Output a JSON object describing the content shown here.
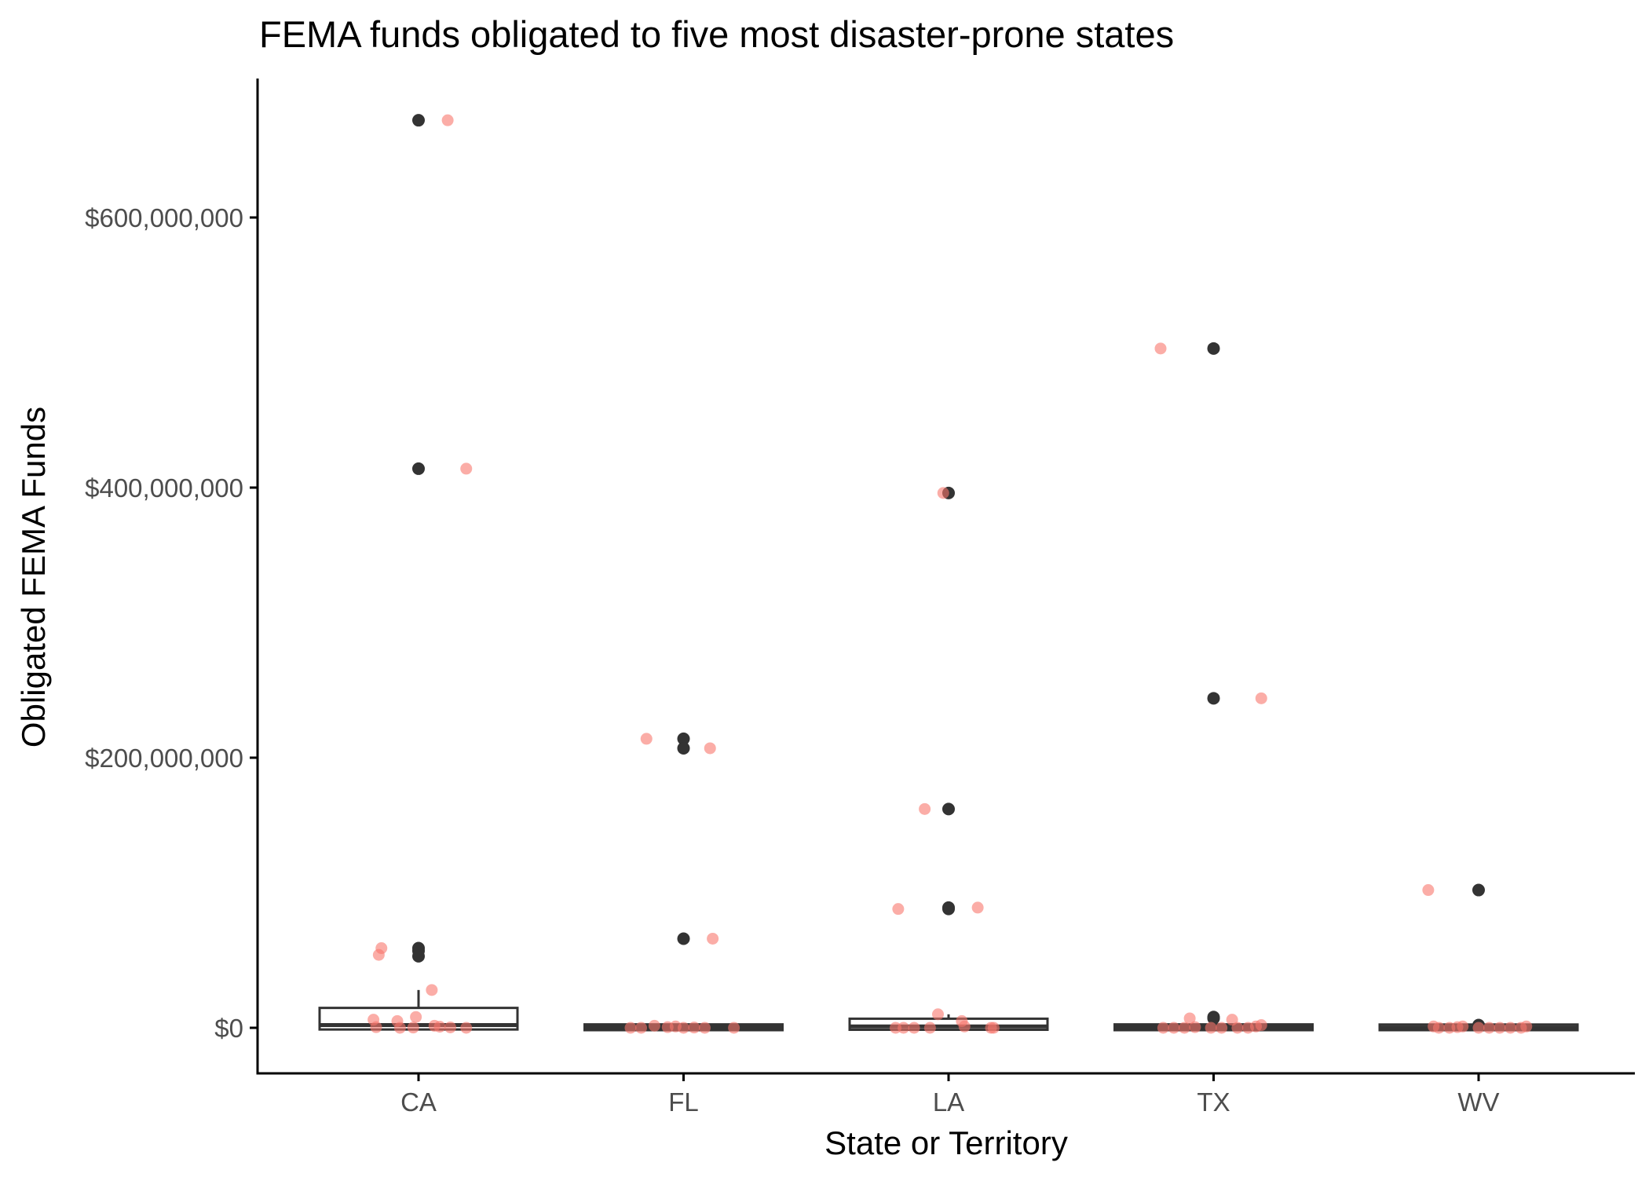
{
  "chart_data": {
    "type": "boxplot",
    "title": "FEMA funds obligated to five most disaster-prone states",
    "xlabel": "State or Territory",
    "ylabel": "Obligated FEMA Funds",
    "categories": [
      "CA",
      "FL",
      "LA",
      "TX",
      "WV"
    ],
    "y_ticks": [
      0,
      200000000,
      400000000,
      600000000
    ],
    "y_tick_labels": [
      "$0",
      "$200,000,000",
      "$400,000,000",
      "$600,000,000"
    ],
    "ylim": [
      -35000000,
      700000000
    ],
    "grid": false,
    "colors": {
      "box": "#333333",
      "box_fill": "#ffffff",
      "outlier": "#333333",
      "jitter": "#f8766d",
      "axis": "#000000"
    },
    "boxes": [
      {
        "category": "CA",
        "q1": 500000,
        "median": 2000000,
        "q3": 13000000,
        "whisker_low": 0,
        "whisker_high": 28000000,
        "outliers": [
          672000000,
          414000000,
          59000000,
          57000000,
          53000000
        ]
      },
      {
        "category": "FL",
        "q1": 0,
        "median": 300000,
        "q3": 800000,
        "whisker_low": 0,
        "whisker_high": 1500000,
        "outliers": [
          214000000,
          207000000,
          66000000
        ]
      },
      {
        "category": "LA",
        "q1": 300000,
        "median": 1000000,
        "q3": 5000000,
        "whisker_low": 0,
        "whisker_high": 10000000,
        "outliers": [
          396000000,
          162000000,
          89000000,
          88000000
        ]
      },
      {
        "category": "TX",
        "q1": 0,
        "median": 300000,
        "q3": 800000,
        "whisker_low": 0,
        "whisker_high": 2000000,
        "outliers": [
          503000000,
          244000000,
          8000000,
          7000000
        ]
      },
      {
        "category": "WV",
        "q1": 0,
        "median": 200000,
        "q3": 700000,
        "whisker_low": 0,
        "whisker_high": 1500000,
        "outliers": [
          102000000,
          2000000
        ]
      }
    ],
    "jitter_points": [
      {
        "category": "CA",
        "dx": 0.11,
        "y": 672000000
      },
      {
        "category": "CA",
        "dx": 0.18,
        "y": 414000000
      },
      {
        "category": "CA",
        "dx": -0.14,
        "y": 59000000
      },
      {
        "category": "CA",
        "dx": -0.15,
        "y": 54000000
      },
      {
        "category": "CA",
        "dx": 0.05,
        "y": 28000000
      },
      {
        "category": "CA",
        "dx": -0.17,
        "y": 6000000
      },
      {
        "category": "CA",
        "dx": -0.08,
        "y": 5000000
      },
      {
        "category": "CA",
        "dx": -0.01,
        "y": 8000000
      },
      {
        "category": "CA",
        "dx": -0.16,
        "y": 500000
      },
      {
        "category": "CA",
        "dx": -0.07,
        "y": 0
      },
      {
        "category": "CA",
        "dx": -0.02,
        "y": 200000
      },
      {
        "category": "CA",
        "dx": 0.06,
        "y": 1500000
      },
      {
        "category": "CA",
        "dx": 0.08,
        "y": 800000
      },
      {
        "category": "CA",
        "dx": 0.12,
        "y": 300000
      },
      {
        "category": "CA",
        "dx": 0.18,
        "y": 0
      },
      {
        "category": "FL",
        "dx": -0.14,
        "y": 214000000
      },
      {
        "category": "FL",
        "dx": 0.1,
        "y": 207000000
      },
      {
        "category": "FL",
        "dx": 0.11,
        "y": 66000000
      },
      {
        "category": "FL",
        "dx": -0.2,
        "y": 0
      },
      {
        "category": "FL",
        "dx": -0.16,
        "y": 0
      },
      {
        "category": "FL",
        "dx": -0.11,
        "y": 1500000
      },
      {
        "category": "FL",
        "dx": -0.06,
        "y": 500000
      },
      {
        "category": "FL",
        "dx": -0.03,
        "y": 1000000
      },
      {
        "category": "FL",
        "dx": 0.0,
        "y": 0
      },
      {
        "category": "FL",
        "dx": 0.04,
        "y": 200000
      },
      {
        "category": "FL",
        "dx": 0.08,
        "y": 0
      },
      {
        "category": "FL",
        "dx": 0.19,
        "y": 0
      },
      {
        "category": "LA",
        "dx": -0.19,
        "y": 88000000
      },
      {
        "category": "LA",
        "dx": 0.11,
        "y": 89000000
      },
      {
        "category": "LA",
        "dx": -0.09,
        "y": 162000000
      },
      {
        "category": "LA",
        "dx": -0.02,
        "y": 396000000
      },
      {
        "category": "LA",
        "dx": -0.04,
        "y": 10000000
      },
      {
        "category": "LA",
        "dx": 0.05,
        "y": 5000000
      },
      {
        "category": "LA",
        "dx": 0.06,
        "y": 1000000
      },
      {
        "category": "LA",
        "dx": -0.2,
        "y": 0
      },
      {
        "category": "LA",
        "dx": -0.17,
        "y": 0
      },
      {
        "category": "LA",
        "dx": -0.13,
        "y": 0
      },
      {
        "category": "LA",
        "dx": -0.07,
        "y": 0
      },
      {
        "category": "LA",
        "dx": 0.16,
        "y": 0
      },
      {
        "category": "LA",
        "dx": 0.17,
        "y": 0
      },
      {
        "category": "TX",
        "dx": -0.2,
        "y": 503000000
      },
      {
        "category": "TX",
        "dx": 0.18,
        "y": 244000000
      },
      {
        "category": "TX",
        "dx": -0.09,
        "y": 7000000
      },
      {
        "category": "TX",
        "dx": 0.07,
        "y": 6000000
      },
      {
        "category": "TX",
        "dx": -0.19,
        "y": 0
      },
      {
        "category": "TX",
        "dx": -0.15,
        "y": 0
      },
      {
        "category": "TX",
        "dx": -0.11,
        "y": 0
      },
      {
        "category": "TX",
        "dx": -0.07,
        "y": 500000
      },
      {
        "category": "TX",
        "dx": -0.01,
        "y": 0
      },
      {
        "category": "TX",
        "dx": 0.03,
        "y": 0
      },
      {
        "category": "TX",
        "dx": 0.09,
        "y": 0
      },
      {
        "category": "TX",
        "dx": 0.13,
        "y": 0
      },
      {
        "category": "TX",
        "dx": 0.16,
        "y": 1000000
      },
      {
        "category": "TX",
        "dx": 0.18,
        "y": 2000000
      },
      {
        "category": "WV",
        "dx": -0.19,
        "y": 102000000
      },
      {
        "category": "WV",
        "dx": -0.17,
        "y": 1000000
      },
      {
        "category": "WV",
        "dx": -0.15,
        "y": 0
      },
      {
        "category": "WV",
        "dx": -0.11,
        "y": 0
      },
      {
        "category": "WV",
        "dx": -0.08,
        "y": 500000
      },
      {
        "category": "WV",
        "dx": -0.06,
        "y": 1000000
      },
      {
        "category": "WV",
        "dx": 0.0,
        "y": 0
      },
      {
        "category": "WV",
        "dx": 0.04,
        "y": 0
      },
      {
        "category": "WV",
        "dx": 0.08,
        "y": 0
      },
      {
        "category": "WV",
        "dx": 0.12,
        "y": 0
      },
      {
        "category": "WV",
        "dx": 0.16,
        "y": 0
      },
      {
        "category": "WV",
        "dx": 0.18,
        "y": 1000000
      }
    ]
  }
}
